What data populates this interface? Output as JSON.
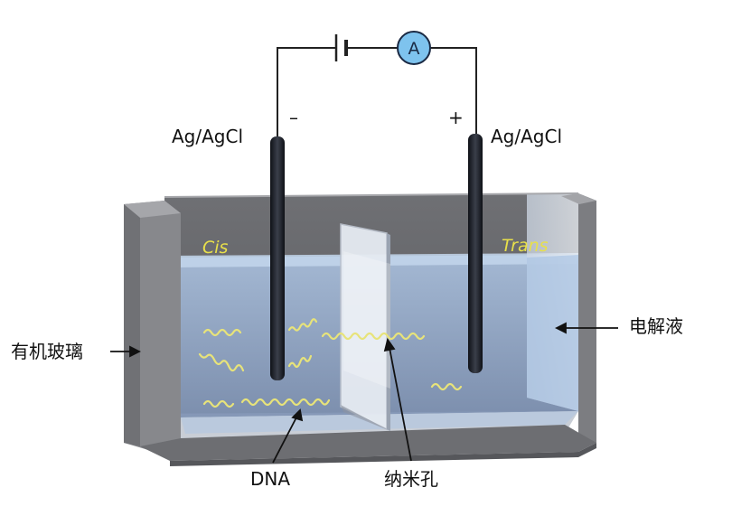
{
  "labels": {
    "left_electrode": "Ag/AgCl",
    "right_electrode": "Ag/AgCl",
    "negative": "–",
    "positive": "+",
    "cis": "Cis",
    "trans": "Trans",
    "container": "有机玻璃",
    "electrolyte": "电解液",
    "dna": "DNA",
    "nanopore": "纳米孔",
    "ammeter": "A"
  },
  "colors": {
    "tank_wall": "#7c7c7e",
    "tank_wall_dark": "#5f6063",
    "liquid": "#9db2cf",
    "liquid_surface": "#bcd2ea",
    "electrode": "#22252c",
    "dna": "#e7e37a",
    "ammeter": "#7ec3ee",
    "label_yellow": "#e8e04a"
  },
  "icons": {
    "battery": "battery-icon",
    "ammeter": "ammeter-icon"
  }
}
